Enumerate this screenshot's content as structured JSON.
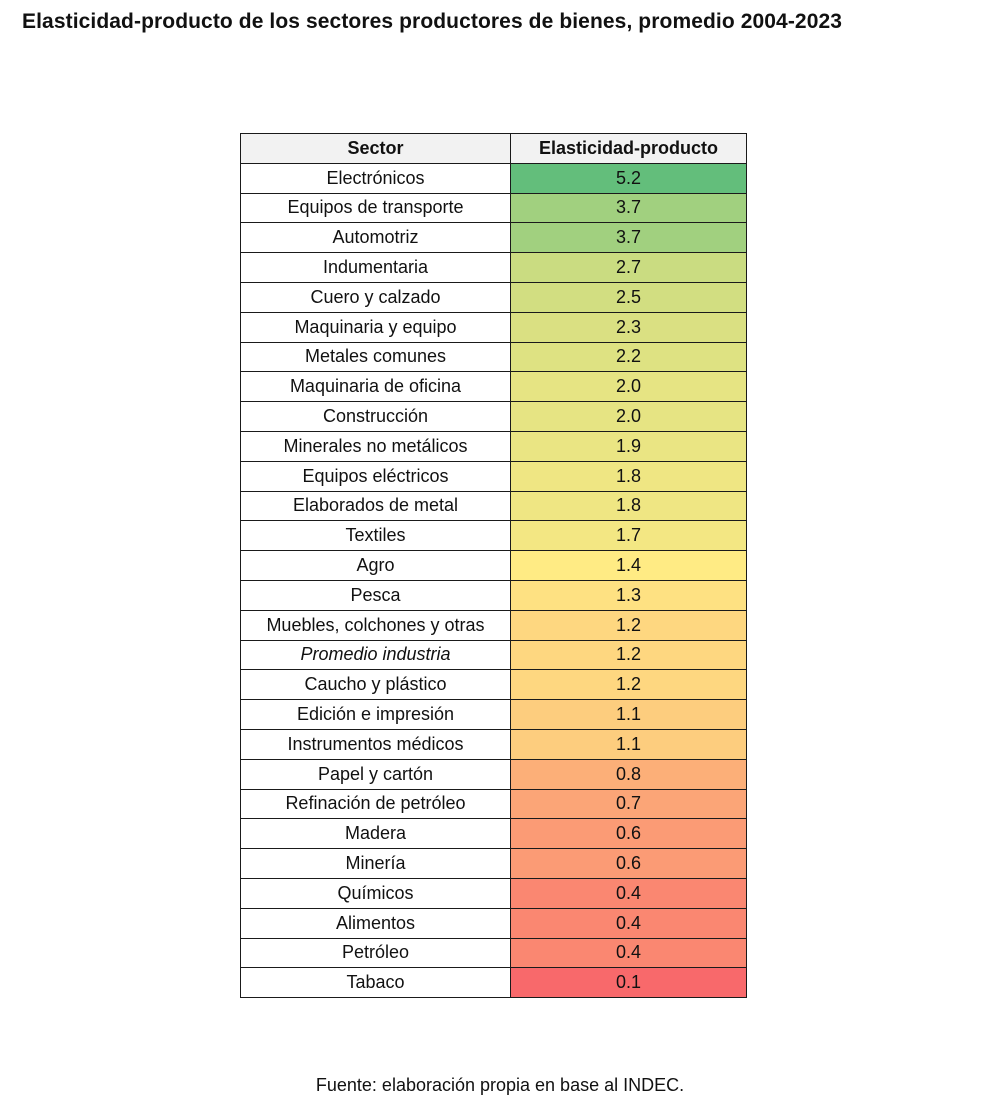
{
  "title": "Elasticidad-producto de los sectores productores de bienes, promedio 2004-2023",
  "footer": "Fuente: elaboración propia en base al INDEC.",
  "colors": {
    "low": "#f8696b",
    "mid": "#ffeb84",
    "high": "#63be7b"
  },
  "chart_data": {
    "type": "table",
    "columns": [
      "Sector",
      "Elasticidad-producto"
    ],
    "rows": [
      {
        "sector": "Electrónicos",
        "value": "5.2"
      },
      {
        "sector": "Equipos de transporte",
        "value": "3.7"
      },
      {
        "sector": "Automotriz",
        "value": "3.7"
      },
      {
        "sector": "Indumentaria",
        "value": "2.7"
      },
      {
        "sector": "Cuero y calzado",
        "value": "2.5"
      },
      {
        "sector": "Maquinaria y equipo",
        "value": "2.3"
      },
      {
        "sector": "Metales comunes",
        "value": "2.2"
      },
      {
        "sector": "Maquinaria de oficina",
        "value": "2.0"
      },
      {
        "sector": "Construcción",
        "value": "2.0"
      },
      {
        "sector": "Minerales no metálicos",
        "value": "1.9"
      },
      {
        "sector": "Equipos eléctricos",
        "value": "1.8"
      },
      {
        "sector": "Elaborados de metal",
        "value": "1.8"
      },
      {
        "sector": "Textiles",
        "value": "1.7"
      },
      {
        "sector": "Agro",
        "value": "1.4"
      },
      {
        "sector": "Pesca",
        "value": "1.3"
      },
      {
        "sector": "Muebles, colchones y otras",
        "value": "1.2"
      },
      {
        "sector": "Promedio industria",
        "value": "1.2",
        "italic": true
      },
      {
        "sector": "Caucho y plástico",
        "value": "1.2"
      },
      {
        "sector": "Edición e impresión",
        "value": "1.1"
      },
      {
        "sector": "Instrumentos médicos",
        "value": "1.1"
      },
      {
        "sector": "Papel y cartón",
        "value": "0.8"
      },
      {
        "sector": "Refinación de petróleo",
        "value": "0.7"
      },
      {
        "sector": "Madera",
        "value": "0.6"
      },
      {
        "sector": "Minería",
        "value": "0.6"
      },
      {
        "sector": "Químicos",
        "value": "0.4"
      },
      {
        "sector": "Alimentos",
        "value": "0.4"
      },
      {
        "sector": "Petróleo",
        "value": "0.4"
      },
      {
        "sector": "Tabaco",
        "value": "0.1"
      }
    ]
  }
}
